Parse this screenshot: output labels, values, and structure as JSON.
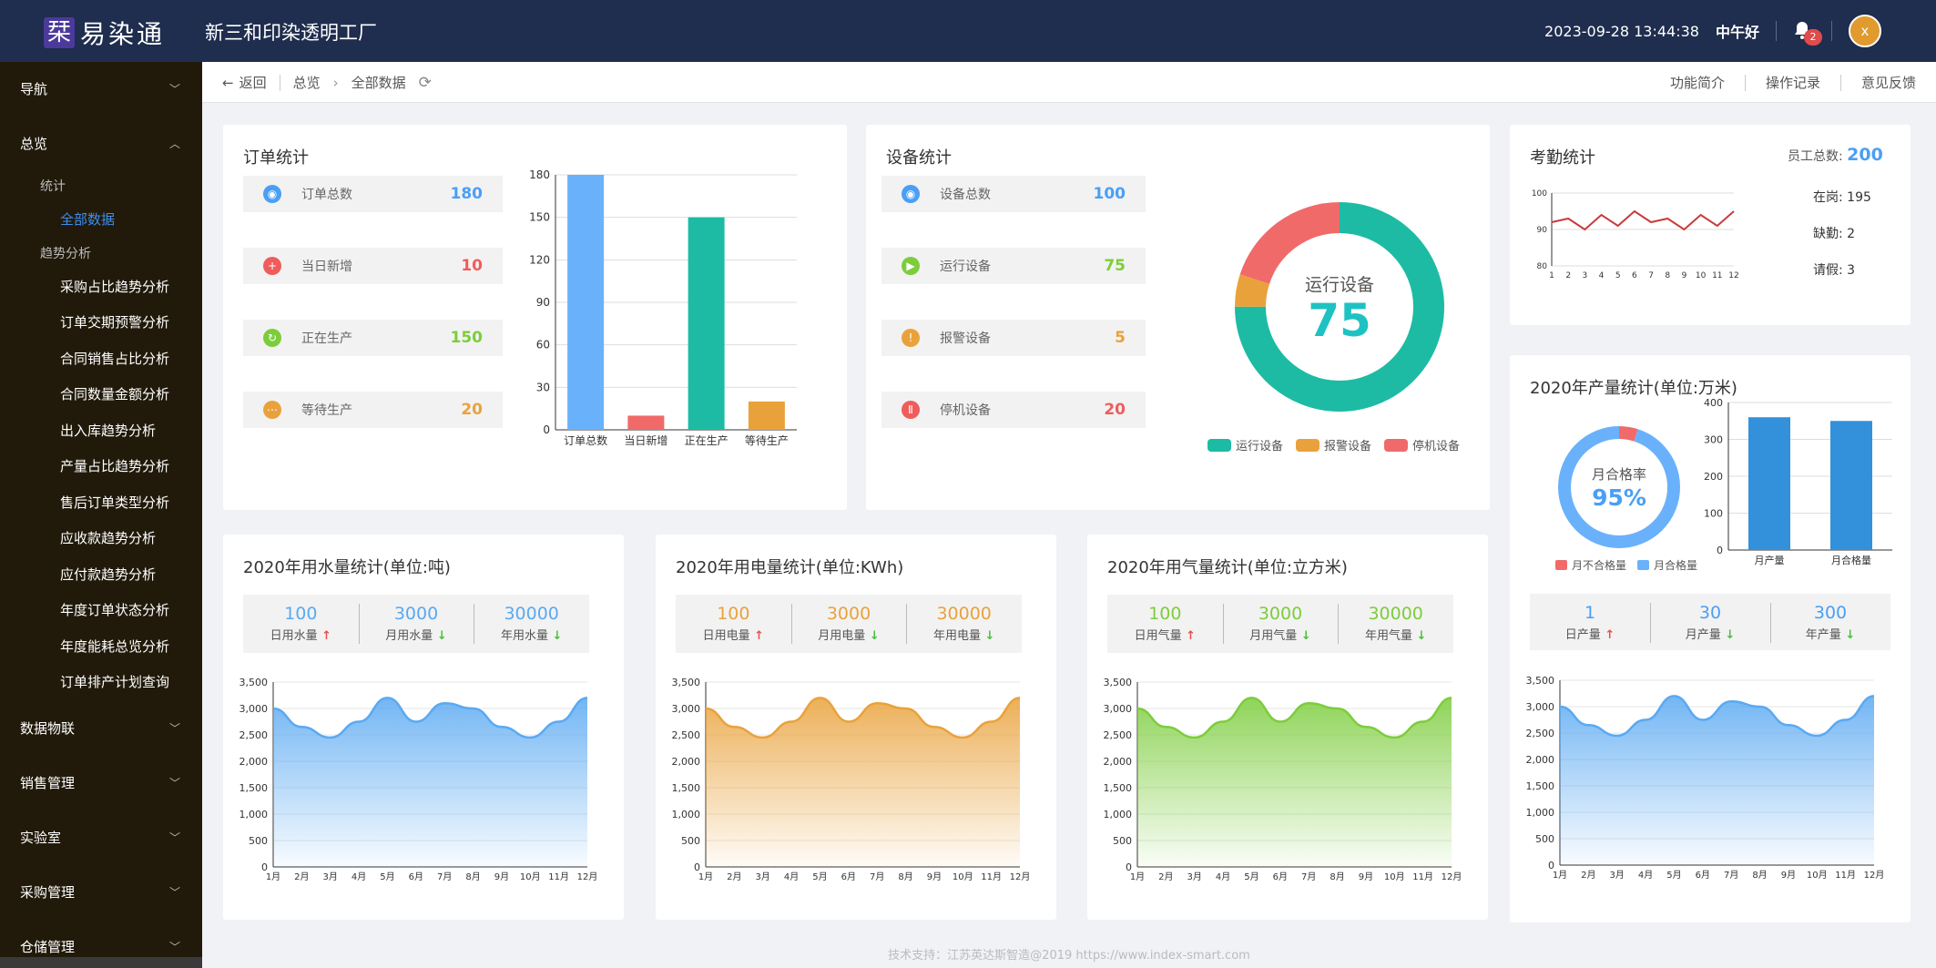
{
  "header": {
    "logo_char": "栞",
    "logo_text": "易染通",
    "factory_name": "新三和印染透明工厂",
    "datetime": "2023-09-28 13:44:38",
    "greeting": "中午好",
    "notification_count": "2",
    "avatar_letter": "x"
  },
  "sidebar": {
    "nav": "导航",
    "overview": "总览",
    "stats_group": "统计",
    "all_data": "全部数据",
    "trend_group": "趋势分析",
    "trend_items": [
      "采购占比趋势分析",
      "订单交期预警分析",
      "合同销售占比分析",
      "合同数量金额分析",
      "出入库趋势分析",
      "产量占比趋势分析",
      "售后订单类型分析",
      "应收款趋势分析",
      "应付款趋势分析",
      "年度订单状态分析",
      "年度能耗总览分析",
      "订单排产计划查询"
    ],
    "bottom_items": [
      "数据物联",
      "销售管理",
      "实验室",
      "采购管理",
      "仓储管理"
    ]
  },
  "breadcrumb": {
    "back": "返回",
    "overview": "总览",
    "current": "全部数据",
    "links": [
      "功能简介",
      "操作记录",
      "意见反馈"
    ]
  },
  "orders": {
    "title": "订单统计",
    "rows": [
      {
        "label": "订单总数",
        "value": "180",
        "color": "#4a9ff5"
      },
      {
        "label": "当日新增",
        "value": "10",
        "color": "#f05c5c"
      },
      {
        "label": "正在生产",
        "value": "150",
        "color": "#7ccd3c"
      },
      {
        "label": "等待生产",
        "value": "20",
        "color": "#e9a23b"
      }
    ]
  },
  "devices": {
    "title": "设备统计",
    "rows": [
      {
        "label": "设备总数",
        "value": "100",
        "color": "#4a9ff5"
      },
      {
        "label": "运行设备",
        "value": "75",
        "color": "#7ccd3c"
      },
      {
        "label": "报警设备",
        "value": "5",
        "color": "#e9a23b"
      },
      {
        "label": "停机设备",
        "value": "20",
        "color": "#f05c5c"
      }
    ],
    "donut_label": "运行设备",
    "donut_value": "75",
    "legend": [
      "运行设备",
      "报警设备",
      "停机设备"
    ]
  },
  "attendance": {
    "title": "考勤统计",
    "total_label": "员工总数:",
    "total_value": "200",
    "on_duty": "在岗: 195",
    "absent": "缺勤: 2",
    "leave": "请假: 3"
  },
  "production": {
    "title": "2020年产量统计(单位:万米)",
    "rate_label": "月合格率",
    "rate_value": "95%",
    "legend": [
      "月不合格量",
      "月合格量"
    ],
    "stats": [
      {
        "value": "1",
        "label": "日产量",
        "dir": "up"
      },
      {
        "value": "30",
        "label": "月产量",
        "dir": "down"
      },
      {
        "value": "300",
        "label": "年产量",
        "dir": "down"
      }
    ]
  },
  "water": {
    "title": "2020年用水量统计(单位:吨)",
    "color": "#5aa9f2",
    "stats": [
      {
        "value": "100",
        "label": "日用水量",
        "dir": "up"
      },
      {
        "value": "3000",
        "label": "月用水量",
        "dir": "down"
      },
      {
        "value": "30000",
        "label": "年用水量",
        "dir": "down"
      }
    ]
  },
  "power": {
    "title": "2020年用电量统计(单位:KWh)",
    "color": "#e9a23b",
    "stats": [
      {
        "value": "100",
        "label": "日用电量",
        "dir": "up"
      },
      {
        "value": "3000",
        "label": "月用电量",
        "dir": "down"
      },
      {
        "value": "30000",
        "label": "年用电量",
        "dir": "down"
      }
    ]
  },
  "gas": {
    "title": "2020年用气量统计(单位:立方米)",
    "color": "#7ccd3c",
    "stats": [
      {
        "value": "100",
        "label": "日用气量",
        "dir": "up"
      },
      {
        "value": "3000",
        "label": "月用气量",
        "dir": "down"
      },
      {
        "value": "30000",
        "label": "年用气量",
        "dir": "down"
      }
    ]
  },
  "footer": "技术支持：江苏英达斯智造@2019 https://www.index-smart.com",
  "chart_data": [
    {
      "id": "orders_bar",
      "type": "bar",
      "categories": [
        "订单总数",
        "当日新增",
        "正在生产",
        "等待生产"
      ],
      "values": [
        180,
        10,
        150,
        20
      ],
      "colors": [
        "#6ab1fb",
        "#f06a6a",
        "#1dbba4",
        "#e9a23b"
      ],
      "ylim": [
        0,
        180
      ],
      "yticks": [
        0,
        30,
        60,
        90,
        120,
        150,
        180
      ]
    },
    {
      "id": "devices_donut",
      "type": "pie",
      "categories": [
        "运行设备",
        "报警设备",
        "停机设备"
      ],
      "values": [
        75,
        5,
        20
      ],
      "colors": [
        "#1dbba4",
        "#e9a23b",
        "#f06a6a"
      ]
    },
    {
      "id": "attendance_line",
      "type": "line",
      "x": [
        1,
        2,
        3,
        4,
        5,
        6,
        7,
        8,
        9,
        10,
        11,
        12
      ],
      "values": [
        92,
        93,
        90,
        94,
        91,
        95,
        92,
        93,
        90,
        94,
        91,
        95
      ],
      "ylim": [
        80,
        100
      ],
      "yticks": [
        80,
        90,
        100
      ],
      "color": "#c83c3c"
    },
    {
      "id": "production_rate",
      "type": "pie",
      "categories": [
        "月不合格量",
        "月合格量"
      ],
      "values": [
        5,
        95
      ],
      "colors": [
        "#f06a6a",
        "#6ab1fb"
      ]
    },
    {
      "id": "production_bar",
      "type": "bar",
      "categories": [
        "月产量",
        "月合格量"
      ],
      "values": [
        360,
        350
      ],
      "colors": [
        "#3391db",
        "#3391db"
      ],
      "ylim": [
        0,
        400
      ],
      "yticks": [
        0,
        100,
        200,
        300,
        400
      ]
    },
    {
      "id": "water_area",
      "type": "area",
      "categories": [
        "1月",
        "2月",
        "3月",
        "4月",
        "5月",
        "6月",
        "7月",
        "8月",
        "9月",
        "10月",
        "11月",
        "12月"
      ],
      "values": [
        3000,
        2650,
        2450,
        2750,
        3200,
        2750,
        3100,
        3000,
        2650,
        2450,
        2750,
        3200
      ],
      "ylim": [
        0,
        3500
      ],
      "yticks": [
        0,
        500,
        1000,
        1500,
        2000,
        2500,
        3000,
        3500
      ]
    },
    {
      "id": "power_area",
      "type": "area",
      "categories": [
        "1月",
        "2月",
        "3月",
        "4月",
        "5月",
        "6月",
        "7月",
        "8月",
        "9月",
        "10月",
        "11月",
        "12月"
      ],
      "values": [
        3000,
        2650,
        2450,
        2750,
        3200,
        2750,
        3100,
        3000,
        2650,
        2450,
        2750,
        3200
      ],
      "ylim": [
        0,
        3500
      ],
      "yticks": [
        0,
        500,
        1000,
        1500,
        2000,
        2500,
        3000,
        3500
      ]
    },
    {
      "id": "gas_area",
      "type": "area",
      "categories": [
        "1月",
        "2月",
        "3月",
        "4月",
        "5月",
        "6月",
        "7月",
        "8月",
        "9月",
        "10月",
        "11月",
        "12月"
      ],
      "values": [
        3000,
        2650,
        2450,
        2750,
        3200,
        2750,
        3100,
        3000,
        2650,
        2450,
        2750,
        3200
      ],
      "ylim": [
        0,
        3500
      ],
      "yticks": [
        0,
        500,
        1000,
        1500,
        2000,
        2500,
        3000,
        3500
      ]
    },
    {
      "id": "production_area",
      "type": "area",
      "categories": [
        "1月",
        "2月",
        "3月",
        "4月",
        "5月",
        "6月",
        "7月",
        "8月",
        "9月",
        "10月",
        "11月",
        "12月"
      ],
      "values": [
        3000,
        2650,
        2450,
        2750,
        3200,
        2750,
        3100,
        3000,
        2650,
        2450,
        2750,
        3200
      ],
      "ylim": [
        0,
        3500
      ],
      "yticks": [
        0,
        500,
        1000,
        1500,
        2000,
        2500,
        3000,
        3500
      ]
    }
  ]
}
